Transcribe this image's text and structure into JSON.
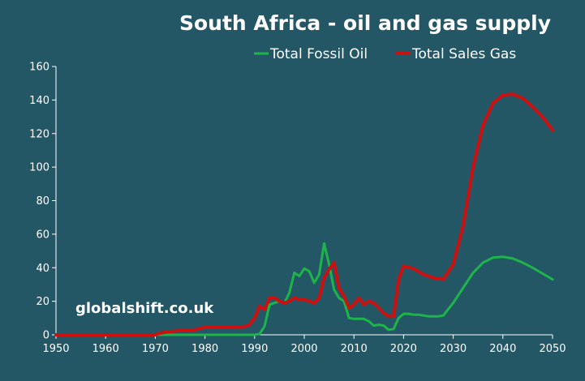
{
  "chart_data": {
    "type": "line",
    "title": "South Africa - oil and gas supply",
    "xlabel": "",
    "ylabel": "",
    "xlim": [
      1950,
      2050
    ],
    "ylim": [
      0,
      160
    ],
    "x_ticks": [
      "1950",
      "1960",
      "1970",
      "1980",
      "1990",
      "2000",
      "2010",
      "2020",
      "2030",
      "2040",
      "2050"
    ],
    "y_ticks": [
      "0",
      "20",
      "40",
      "60",
      "80",
      "100",
      "120",
      "140",
      "160"
    ],
    "grid": false,
    "legend_position": "top-right",
    "watermark": "globalshift.co.uk",
    "series": [
      {
        "name": "Total Fossil Oil",
        "color": "#1db54a",
        "x": [
          1950,
          1970,
          1971,
          1980,
          1990,
          1991,
          1992,
          1993,
          1994,
          1995,
          1996,
          1997,
          1998,
          1999,
          2000,
          2001,
          2002,
          2003,
          2004,
          2005,
          2006,
          2007,
          2008,
          2009,
          2010,
          2011,
          2012,
          2013,
          2014,
          2015,
          2016,
          2017,
          2018,
          2019,
          2020,
          2021,
          2022,
          2023,
          2024,
          2025,
          2026,
          2027,
          2028,
          2030,
          2032,
          2034,
          2036,
          2038,
          2040,
          2042,
          2044,
          2046,
          2048,
          2050
        ],
        "y": [
          0,
          0,
          0,
          0,
          0,
          0.5,
          5,
          18,
          19,
          20,
          19,
          25,
          37,
          35,
          39.5,
          38,
          31,
          36,
          54.5,
          42,
          27,
          22,
          20,
          10,
          9.5,
          9.5,
          9.5,
          8,
          5.5,
          6,
          5.5,
          3,
          3.5,
          10,
          12.5,
          12.5,
          12,
          12,
          11.5,
          11,
          11,
          11,
          11.5,
          19,
          28,
          37,
          43,
          46,
          46.5,
          45.5,
          43,
          40,
          36.5,
          33
        ]
      },
      {
        "name": "Total Sales Gas",
        "color": "#cc1010",
        "x": [
          1950,
          1970,
          1971,
          1972,
          1975,
          1978,
          1980,
          1985,
          1988,
          1989,
          1990,
          1991,
          1992,
          1993,
          1994,
          1995,
          1996,
          1997,
          1998,
          1999,
          2000,
          2001,
          2002,
          2003,
          2004,
          2005,
          2006,
          2007,
          2008,
          2009,
          2010,
          2011,
          2012,
          2013,
          2014,
          2015,
          2016,
          2017,
          2018,
          2019,
          2020,
          2022,
          2024,
          2026,
          2028,
          2030,
          2032,
          2034,
          2036,
          2038,
          2040,
          2042,
          2044,
          2046,
          2048,
          2050
        ],
        "y": [
          0,
          0,
          1,
          1.5,
          2.5,
          3,
          4.5,
          4.5,
          5,
          6,
          10,
          17,
          15,
          22,
          22,
          20,
          19,
          20,
          22,
          21,
          21,
          20,
          19,
          22,
          34,
          39,
          43,
          28,
          23,
          16,
          18,
          22,
          18,
          20,
          19,
          16,
          13,
          11,
          11,
          33,
          41,
          39.5,
          36,
          34,
          33,
          42,
          65,
          100,
          125,
          138,
          143,
          143.5,
          141,
          136,
          130,
          122
        ]
      }
    ]
  }
}
